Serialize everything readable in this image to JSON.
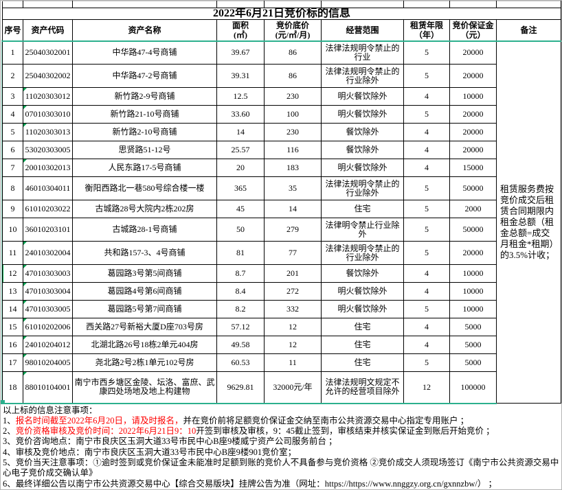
{
  "title": "2022年6月21日竞价标的信息",
  "table": {
    "headers": [
      "序号",
      "资产代码",
      "资产名称",
      "面积\n(㎡)",
      "竞价底价\n(元/㎡/月)",
      "经营范围",
      "租赁年限\n（年）",
      "竞价保证金\n（元）",
      "备注"
    ],
    "rows": [
      {
        "no": "1",
        "code": "25040302001",
        "name": "中华路47-4号商铺",
        "area": "39.67",
        "price": "86",
        "scope": "法律法规明令禁止的行业",
        "years": "5",
        "deposit": "20000",
        "flag": false,
        "selected": false
      },
      {
        "no": "2",
        "code": "25040302002",
        "name": "中华路47-2号商铺",
        "area": "39.31",
        "price": "86",
        "scope": "法律法规明令禁止的行业除外",
        "years": "5",
        "deposit": "20000",
        "flag": false,
        "selected": false
      },
      {
        "no": "3",
        "code": "11020303012",
        "name": "新竹路2-9号商铺",
        "area": "12.5",
        "price": "230",
        "scope": "明火餐饮除外",
        "years": "4",
        "deposit": "10000",
        "flag": true,
        "selected": false
      },
      {
        "no": "4",
        "code": "07010303010",
        "name": "新竹路21-10号商铺",
        "area": "33.60",
        "price": "100",
        "scope": "明火餐饮除外",
        "years": "5",
        "deposit": "20000",
        "flag": true,
        "selected": false
      },
      {
        "no": "5",
        "code": "11020303013",
        "name": "新竹路2-10号商铺",
        "area": "14",
        "price": "230",
        "scope": "餐饮除外",
        "years": "4",
        "deposit": "20000",
        "flag": true,
        "selected": false
      },
      {
        "no": "6",
        "code": "53020303005",
        "name": "思贤路51-12号",
        "area": "25.57",
        "price": "116",
        "scope": "餐饮除外",
        "years": "4",
        "deposit": "20000",
        "flag": false,
        "selected": false
      },
      {
        "no": "7",
        "code": "20010302013",
        "name": "人民东路17-5号商铺",
        "area": "20",
        "price": "183",
        "scope": "明火餐饮除外",
        "years": "4",
        "deposit": "15000",
        "flag": true,
        "selected": false
      },
      {
        "no": "8",
        "code": "46010304011",
        "name": "衡阳西路北一巷580号综合楼一楼",
        "area": "365",
        "price": "35",
        "scope": "法律法规明令禁止的行业除外",
        "years": "5",
        "deposit": "50000",
        "flag": false,
        "selected": false
      },
      {
        "no": "9",
        "code": "61010203022",
        "name": "古城路28号大院内2栋202房",
        "area": "45",
        "price": "14",
        "scope": "住宅",
        "years": "5",
        "deposit": "2000",
        "flag": false,
        "selected": false
      },
      {
        "no": "10",
        "code": "36010203101",
        "name": "古城路28-1号商铺",
        "area": "50",
        "price": "279",
        "scope": "法律明令禁止行业除外",
        "years": "5",
        "deposit": "50000",
        "flag": false,
        "selected": false
      },
      {
        "no": "11",
        "code": "24010302004",
        "name": "共和路157-3、4号商铺",
        "area": "81",
        "price": "77",
        "scope": "法律法规明令禁止的行业除外",
        "years": "5",
        "deposit": "20000",
        "flag": true,
        "selected": false
      },
      {
        "no": "12",
        "code": "47010303003",
        "name": "葛园路3号第5间商铺",
        "area": "8.7",
        "price": "201",
        "scope": "餐饮除外",
        "years": "4",
        "deposit": "10000",
        "flag": true,
        "selected": true
      },
      {
        "no": "13",
        "code": "47010303004",
        "name": "葛园路4号第6间商铺",
        "area": "8.4",
        "price": "272",
        "scope": "明火餐饮除外",
        "years": "4",
        "deposit": "10000",
        "flag": true,
        "selected": false
      },
      {
        "no": "14",
        "code": "47010303005",
        "name": "葛园路5号第7间商铺",
        "area": "8.2",
        "price": "332",
        "scope": "明火餐饮除外",
        "years": "5",
        "deposit": "10000",
        "flag": true,
        "selected": false
      },
      {
        "no": "15",
        "code": "61010202006",
        "name": "西关路27号新裕大厦D座703号房",
        "area": "57.12",
        "price": "12",
        "scope": "住宅",
        "years": "4",
        "deposit": "5000",
        "flag": true,
        "selected": false
      },
      {
        "no": "16",
        "code": "24010204012",
        "name": "北湖北路26号18栋2单元404房",
        "area": "49.58",
        "price": "12",
        "scope": "住宅",
        "years": "4",
        "deposit": "5000",
        "flag": true,
        "selected": false
      },
      {
        "no": "17",
        "code": "98010204005",
        "name": "尧北路2号2栋1单元102号房",
        "area": "60.53",
        "price": "11",
        "scope": "住宅",
        "years": "5",
        "deposit": "5000",
        "flag": true,
        "selected": false
      },
      {
        "no": "18",
        "code": "88010104001",
        "name": "南宁市西乡塘区金陵、坛洛、富庶、武康四处场地及地上构建物",
        "area": "9629.81",
        "price": "32000元/年",
        "scope": "法律法规明文规定不允许的经营项目除外",
        "years": "12",
        "deposit": "100000",
        "flag": true,
        "selected": false
      }
    ],
    "remark": "租赁服务费按竞价成交后租赁合同期限内租金总额（租金总额=成交月租金*租期）的3.5%计收；"
  },
  "notes": {
    "intro": "以上标的信息注意事项：",
    "items": [
      {
        "segments": [
          {
            "text": "1、",
            "red": false
          },
          {
            "text": "报名时间截至2022年6月20日，请及时报名，",
            "red": true
          },
          {
            "text": "并在竞价前将足额竞价保证金交纳至南市公共资源交易中心指定专用账户 ；",
            "red": false
          }
        ]
      },
      {
        "segments": [
          {
            "text": "2、",
            "red": false
          },
          {
            "text": "竞价资格审核及竞价时间：2022年6月21日9：10",
            "red": true
          },
          {
            "text": "开签到审核及审核，9：45截止签到，审核结束并核实保证金到账后开始竞价 ；",
            "red": false
          }
        ]
      },
      {
        "segments": [
          {
            "text": "3、竞价咨询地点：南宁市良庆区玉洞大道33号市民中心B座9楼威宁资产公司服务前台 ；",
            "red": false
          }
        ]
      },
      {
        "segments": [
          {
            "text": "4、审核及竞价地点：南宁市良庆区玉洞大道33号市民中心B座9楼901竞价室；",
            "red": false
          }
        ]
      },
      {
        "segments": [
          {
            "text": "5、竞价当天注意事项：①逾时签到或竞价保证金未能准时足额到账的竞价人不具备参与竞价资格 ②竞价成交人须现场签订《南宁市公共资源交易中心电子竞价成交确认单》",
            "red": false
          }
        ]
      },
      {
        "segments": [
          {
            "text": "6、最终详细公告以南宁市公共资源交易中心【综合交易版块】挂牌公告为准（网址：https://https://www.nnggzy.org.cn/gxnnzbw/） ；",
            "red": false
          }
        ]
      }
    ]
  },
  "colors": {
    "accent_teal": "#2bb08d",
    "flag_green": "#00a050",
    "selection_green": "#00b050",
    "highlight_red": "#ff0000"
  }
}
